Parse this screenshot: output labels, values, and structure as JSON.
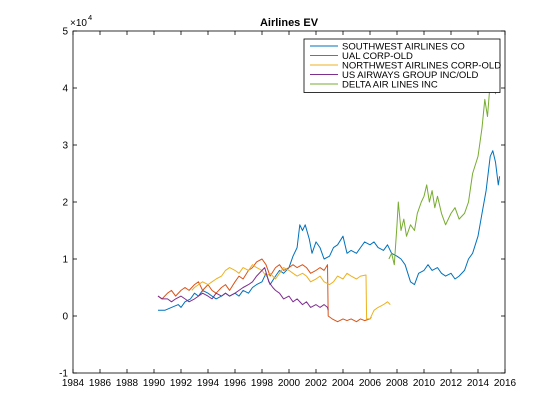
{
  "chart_data": {
    "type": "line",
    "title": "Airlines EV",
    "xlabel": "",
    "ylabel": "",
    "y_multiplier_label": "×10",
    "y_multiplier_exponent": "4",
    "xlim": [
      1984,
      2016
    ],
    "ylim": [
      -1,
      5
    ],
    "x_ticks": [
      "1984",
      "1986",
      "1988",
      "1990",
      "1992",
      "1994",
      "1996",
      "1998",
      "2000",
      "2002",
      "2004",
      "2006",
      "2008",
      "2010",
      "2012",
      "2014",
      "2016"
    ],
    "y_ticks": [
      "-1",
      "0",
      "1",
      "2",
      "3",
      "4",
      "5"
    ],
    "grid": false,
    "legend_position": "top-right",
    "series": [
      {
        "name": "SOUTHWEST AIRLINES CO",
        "color": "#0072bd",
        "points": [
          [
            1990.3,
            0.1
          ],
          [
            1990.8,
            0.1
          ],
          [
            1991.3,
            0.15
          ],
          [
            1991.8,
            0.2
          ],
          [
            1992.0,
            0.15
          ],
          [
            1992.3,
            0.25
          ],
          [
            1992.7,
            0.3
          ],
          [
            1993.0,
            0.4
          ],
          [
            1993.3,
            0.35
          ],
          [
            1993.6,
            0.45
          ],
          [
            1994.0,
            0.4
          ],
          [
            1994.3,
            0.35
          ],
          [
            1994.6,
            0.3
          ],
          [
            1995.0,
            0.35
          ],
          [
            1995.3,
            0.4
          ],
          [
            1995.6,
            0.35
          ],
          [
            1996.0,
            0.4
          ],
          [
            1996.3,
            0.35
          ],
          [
            1996.6,
            0.45
          ],
          [
            1997.0,
            0.4
          ],
          [
            1997.3,
            0.5
          ],
          [
            1997.6,
            0.55
          ],
          [
            1998.0,
            0.6
          ],
          [
            1998.3,
            0.75
          ],
          [
            1998.6,
            0.55
          ],
          [
            1999.0,
            0.7
          ],
          [
            1999.3,
            0.8
          ],
          [
            1999.6,
            0.75
          ],
          [
            2000.0,
            0.85
          ],
          [
            2000.3,
            1.05
          ],
          [
            2000.6,
            1.2
          ],
          [
            2000.8,
            1.6
          ],
          [
            2001.0,
            1.5
          ],
          [
            2001.2,
            1.6
          ],
          [
            2001.5,
            1.35
          ],
          [
            2001.7,
            1.1
          ],
          [
            2002.0,
            1.3
          ],
          [
            2002.3,
            1.2
          ],
          [
            2002.6,
            1.0
          ],
          [
            2003.0,
            1.05
          ],
          [
            2003.3,
            1.2
          ],
          [
            2003.6,
            1.25
          ],
          [
            2004.0,
            1.4
          ],
          [
            2004.3,
            1.1
          ],
          [
            2004.6,
            1.15
          ],
          [
            2005.0,
            1.1
          ],
          [
            2005.3,
            1.2
          ],
          [
            2005.6,
            1.3
          ],
          [
            2006.0,
            1.25
          ],
          [
            2006.3,
            1.3
          ],
          [
            2006.6,
            1.2
          ],
          [
            2007.0,
            1.15
          ],
          [
            2007.3,
            1.25
          ],
          [
            2007.6,
            1.1
          ],
          [
            2008.0,
            1.05
          ],
          [
            2008.3,
            1.0
          ],
          [
            2008.6,
            0.9
          ],
          [
            2009.0,
            0.6
          ],
          [
            2009.3,
            0.55
          ],
          [
            2009.6,
            0.75
          ],
          [
            2010.0,
            0.8
          ],
          [
            2010.3,
            0.9
          ],
          [
            2010.6,
            0.8
          ],
          [
            2011.0,
            0.85
          ],
          [
            2011.3,
            0.75
          ],
          [
            2011.6,
            0.7
          ],
          [
            2012.0,
            0.75
          ],
          [
            2012.3,
            0.65
          ],
          [
            2012.6,
            0.7
          ],
          [
            2013.0,
            0.8
          ],
          [
            2013.3,
            1.0
          ],
          [
            2013.6,
            1.1
          ],
          [
            2014.0,
            1.4
          ],
          [
            2014.3,
            1.8
          ],
          [
            2014.6,
            2.2
          ],
          [
            2014.9,
            2.8
          ],
          [
            2015.1,
            2.9
          ],
          [
            2015.3,
            2.7
          ],
          [
            2015.5,
            2.3
          ],
          [
            2015.6,
            2.45
          ]
        ]
      },
      {
        "name": "UAL CORP-OLD",
        "color": "#d95319",
        "points": [
          [
            1990.3,
            0.35
          ],
          [
            1990.6,
            0.3
          ],
          [
            1991.0,
            0.4
          ],
          [
            1991.3,
            0.45
          ],
          [
            1991.6,
            0.35
          ],
          [
            1992.0,
            0.45
          ],
          [
            1992.3,
            0.5
          ],
          [
            1992.6,
            0.45
          ],
          [
            1993.0,
            0.55
          ],
          [
            1993.3,
            0.6
          ],
          [
            1993.6,
            0.45
          ],
          [
            1994.0,
            0.55
          ],
          [
            1994.3,
            0.45
          ],
          [
            1994.6,
            0.4
          ],
          [
            1995.0,
            0.5
          ],
          [
            1995.3,
            0.55
          ],
          [
            1995.6,
            0.45
          ],
          [
            1996.0,
            0.6
          ],
          [
            1996.3,
            0.7
          ],
          [
            1996.6,
            0.65
          ],
          [
            1997.0,
            0.8
          ],
          [
            1997.3,
            0.85
          ],
          [
            1997.6,
            0.95
          ],
          [
            1998.0,
            1.0
          ],
          [
            1998.3,
            0.9
          ],
          [
            1998.6,
            0.7
          ],
          [
            1999.0,
            0.85
          ],
          [
            1999.3,
            0.9
          ],
          [
            1999.6,
            0.8
          ],
          [
            2000.0,
            0.85
          ],
          [
            2000.3,
            0.9
          ],
          [
            2000.6,
            0.85
          ],
          [
            2001.0,
            0.9
          ],
          [
            2001.3,
            0.85
          ],
          [
            2001.6,
            0.75
          ],
          [
            2002.0,
            0.8
          ],
          [
            2002.3,
            0.85
          ],
          [
            2002.6,
            0.8
          ],
          [
            2002.85,
            0.9
          ],
          [
            2002.9,
            0.0
          ],
          [
            2003.2,
            -0.05
          ],
          [
            2003.6,
            -0.1
          ],
          [
            2004.0,
            -0.05
          ],
          [
            2004.3,
            -0.08
          ],
          [
            2004.6,
            -0.05
          ],
          [
            2005.0,
            -0.1
          ],
          [
            2005.3,
            -0.05
          ],
          [
            2005.6,
            -0.08
          ],
          [
            2006.0,
            -0.05
          ],
          [
            2006.1,
            -0.02
          ]
        ]
      },
      {
        "name": "NORTHWEST AIRLINES CORP-OLD",
        "color": "#edb120",
        "points": [
          [
            1992.8,
            0.45
          ],
          [
            1993.0,
            0.5
          ],
          [
            1993.3,
            0.55
          ],
          [
            1993.6,
            0.6
          ],
          [
            1994.0,
            0.55
          ],
          [
            1994.3,
            0.6
          ],
          [
            1994.6,
            0.65
          ],
          [
            1995.0,
            0.7
          ],
          [
            1995.3,
            0.8
          ],
          [
            1995.6,
            0.85
          ],
          [
            1996.0,
            0.8
          ],
          [
            1996.3,
            0.75
          ],
          [
            1996.6,
            0.85
          ],
          [
            1997.0,
            0.8
          ],
          [
            1997.3,
            0.9
          ],
          [
            1997.6,
            0.85
          ],
          [
            1998.0,
            0.8
          ],
          [
            1998.3,
            0.7
          ],
          [
            1998.6,
            0.75
          ],
          [
            1999.0,
            0.65
          ],
          [
            1999.3,
            0.75
          ],
          [
            1999.6,
            0.85
          ],
          [
            2000.0,
            0.8
          ],
          [
            2000.3,
            0.75
          ],
          [
            2000.6,
            0.7
          ],
          [
            2001.0,
            0.75
          ],
          [
            2001.3,
            0.7
          ],
          [
            2001.6,
            0.6
          ],
          [
            2002.0,
            0.65
          ],
          [
            2002.3,
            0.7
          ],
          [
            2002.6,
            0.6
          ],
          [
            2003.0,
            0.55
          ],
          [
            2003.3,
            0.6
          ],
          [
            2003.6,
            0.7
          ],
          [
            2004.0,
            0.65
          ],
          [
            2004.3,
            0.75
          ],
          [
            2004.6,
            0.7
          ],
          [
            2005.0,
            0.65
          ],
          [
            2005.3,
            0.7
          ],
          [
            2005.7,
            0.72
          ],
          [
            2005.75,
            -0.05
          ],
          [
            2006.0,
            -0.05
          ],
          [
            2006.3,
            0.1
          ],
          [
            2006.6,
            0.15
          ],
          [
            2007.0,
            0.2
          ],
          [
            2007.3,
            0.25
          ],
          [
            2007.5,
            0.2
          ]
        ]
      },
      {
        "name": "US AIRWAYS GROUP INC/OLD",
        "color": "#7e2f8e",
        "points": [
          [
            1990.3,
            0.35
          ],
          [
            1990.6,
            0.3
          ],
          [
            1991.0,
            0.3
          ],
          [
            1991.3,
            0.25
          ],
          [
            1991.6,
            0.3
          ],
          [
            1992.0,
            0.35
          ],
          [
            1992.3,
            0.3
          ],
          [
            1992.6,
            0.25
          ],
          [
            1993.0,
            0.3
          ],
          [
            1993.3,
            0.35
          ],
          [
            1993.6,
            0.4
          ],
          [
            1994.0,
            0.35
          ],
          [
            1994.3,
            0.3
          ],
          [
            1994.6,
            0.4
          ],
          [
            1995.0,
            0.35
          ],
          [
            1995.3,
            0.4
          ],
          [
            1995.6,
            0.35
          ],
          [
            1996.0,
            0.4
          ],
          [
            1996.3,
            0.45
          ],
          [
            1996.6,
            0.5
          ],
          [
            1997.0,
            0.55
          ],
          [
            1997.3,
            0.6
          ],
          [
            1997.6,
            0.7
          ],
          [
            1998.0,
            0.8
          ],
          [
            1998.2,
            0.85
          ],
          [
            1998.5,
            0.6
          ],
          [
            1998.8,
            0.5
          ],
          [
            1999.0,
            0.45
          ],
          [
            1999.3,
            0.4
          ],
          [
            1999.6,
            0.3
          ],
          [
            2000.0,
            0.35
          ],
          [
            2000.3,
            0.25
          ],
          [
            2000.6,
            0.3
          ],
          [
            2001.0,
            0.2
          ],
          [
            2001.3,
            0.25
          ],
          [
            2001.6,
            0.15
          ],
          [
            2002.0,
            0.2
          ],
          [
            2002.3,
            0.15
          ],
          [
            2002.6,
            0.2
          ],
          [
            2002.85,
            0.15
          ],
          [
            2002.9,
            0.1
          ]
        ]
      },
      {
        "name": "DELTA AIR LINES INC",
        "color": "#77ac30",
        "points": [
          [
            2007.4,
            1.0
          ],
          [
            2007.6,
            1.1
          ],
          [
            2007.8,
            0.9
          ],
          [
            2008.0,
            1.6
          ],
          [
            2008.1,
            2.0
          ],
          [
            2008.3,
            1.5
          ],
          [
            2008.5,
            1.7
          ],
          [
            2008.7,
            1.4
          ],
          [
            2009.0,
            1.6
          ],
          [
            2009.3,
            1.5
          ],
          [
            2009.5,
            1.8
          ],
          [
            2009.8,
            2.0
          ],
          [
            2010.0,
            2.1
          ],
          [
            2010.2,
            2.3
          ],
          [
            2010.4,
            2.0
          ],
          [
            2010.6,
            2.2
          ],
          [
            2010.8,
            1.9
          ],
          [
            2011.0,
            2.1
          ],
          [
            2011.3,
            1.8
          ],
          [
            2011.6,
            1.6
          ],
          [
            2012.0,
            1.8
          ],
          [
            2012.3,
            1.9
          ],
          [
            2012.6,
            1.7
          ],
          [
            2013.0,
            1.8
          ],
          [
            2013.3,
            2.0
          ],
          [
            2013.6,
            2.5
          ],
          [
            2014.0,
            2.8
          ],
          [
            2014.3,
            3.3
          ],
          [
            2014.5,
            3.8
          ],
          [
            2014.7,
            3.5
          ],
          [
            2014.9,
            4.1
          ],
          [
            2015.1,
            4.5
          ],
          [
            2015.3,
            3.9
          ],
          [
            2015.5,
            4.3
          ],
          [
            2015.6,
            4.2
          ]
        ]
      }
    ]
  }
}
